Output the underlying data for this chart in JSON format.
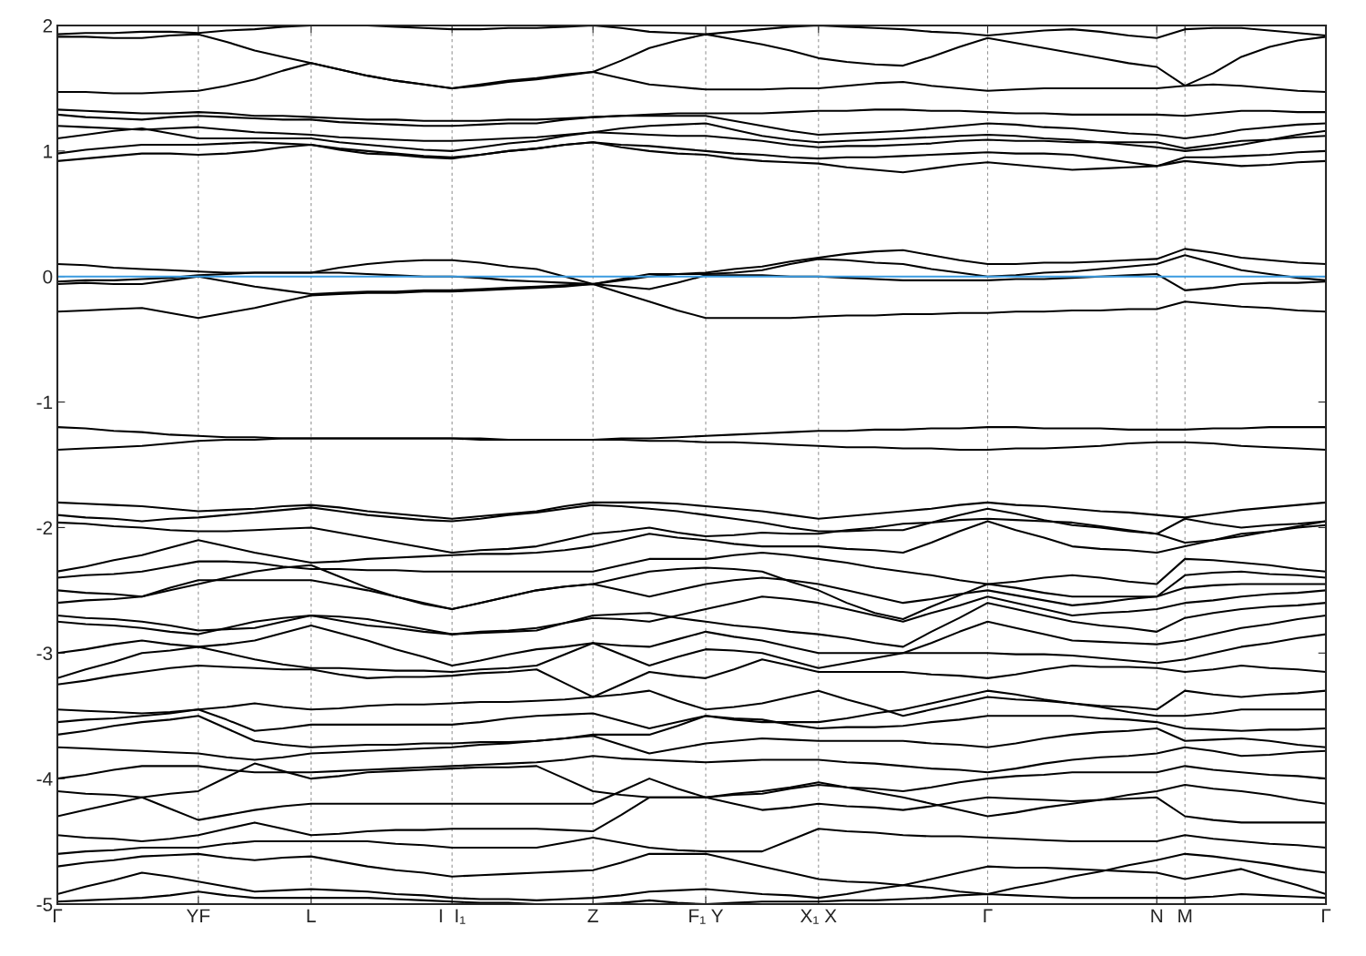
{
  "chart_data": {
    "type": "line",
    "categories": [
      "Γ",
      null,
      null,
      null,
      null,
      "YF",
      null,
      null,
      null,
      "L",
      null,
      null,
      null,
      null,
      "I  I₁",
      null,
      null,
      null,
      null,
      "Z",
      null,
      null,
      null,
      "F₁ Y",
      null,
      null,
      null,
      "X₁ X",
      null,
      null,
      null,
      null,
      null,
      "Γ",
      null,
      null,
      null,
      null,
      null,
      "N",
      "M",
      null,
      null,
      null,
      null,
      "Γ"
    ],
    "ylim": [
      -5,
      2
    ],
    "yticks": [
      -5,
      -4,
      -3,
      -2,
      -1,
      0,
      1,
      2
    ],
    "grid": "x",
    "line_style": "solid",
    "ref_lines": [
      {
        "axis": "y",
        "value": 0,
        "color": "#3a9be0"
      }
    ],
    "series": [
      {
        "color": "#000000",
        "values": [
          1.93,
          1.94,
          1.94,
          1.95,
          1.95,
          1.94,
          1.96,
          1.97,
          1.99,
          2.0,
          2.0,
          2.0,
          1.99,
          1.98,
          1.97,
          1.97,
          1.98,
          1.98,
          1.99,
          2.0,
          1.98,
          1.95,
          1.94,
          1.93,
          1.95,
          1.97,
          1.99,
          2.0,
          1.99,
          1.98,
          1.97,
          1.95,
          1.94,
          1.92,
          1.94,
          1.96,
          1.97,
          1.95,
          1.92,
          1.9,
          1.97,
          1.98,
          1.98,
          1.96,
          1.94,
          1.92
        ]
      },
      {
        "color": "#000000",
        "values": [
          1.91,
          1.91,
          1.9,
          1.9,
          1.92,
          1.93,
          1.87,
          1.8,
          1.75,
          1.7,
          1.65,
          1.6,
          1.56,
          1.53,
          1.5,
          1.52,
          1.55,
          1.57,
          1.6,
          1.63,
          1.72,
          1.82,
          1.88,
          1.93,
          1.89,
          1.85,
          1.8,
          1.74,
          1.71,
          1.69,
          1.68,
          1.75,
          1.83,
          1.9,
          1.86,
          1.82,
          1.78,
          1.74,
          1.7,
          1.67,
          1.52,
          1.62,
          1.75,
          1.83,
          1.88,
          1.91
        ]
      },
      {
        "color": "#000000",
        "values": [
          1.47,
          1.47,
          1.46,
          1.46,
          1.47,
          1.48,
          1.52,
          1.57,
          1.64,
          1.7,
          1.65,
          1.6,
          1.56,
          1.53,
          1.5,
          1.53,
          1.56,
          1.58,
          1.61,
          1.63,
          1.58,
          1.53,
          1.51,
          1.49,
          1.49,
          1.49,
          1.5,
          1.5,
          1.52,
          1.54,
          1.55,
          1.52,
          1.5,
          1.48,
          1.49,
          1.5,
          1.5,
          1.5,
          1.5,
          1.5,
          1.52,
          1.53,
          1.52,
          1.5,
          1.48,
          1.47
        ]
      },
      {
        "color": "#000000",
        "values": [
          1.33,
          1.32,
          1.31,
          1.3,
          1.3,
          1.31,
          1.3,
          1.28,
          1.28,
          1.27,
          1.26,
          1.25,
          1.25,
          1.24,
          1.24,
          1.24,
          1.25,
          1.25,
          1.26,
          1.27,
          1.28,
          1.29,
          1.3,
          1.3,
          1.3,
          1.3,
          1.31,
          1.32,
          1.32,
          1.33,
          1.33,
          1.32,
          1.32,
          1.31,
          1.3,
          1.3,
          1.29,
          1.29,
          1.29,
          1.29,
          1.28,
          1.3,
          1.32,
          1.32,
          1.31,
          1.31
        ]
      },
      {
        "color": "#000000",
        "values": [
          1.29,
          1.27,
          1.26,
          1.25,
          1.27,
          1.28,
          1.27,
          1.26,
          1.25,
          1.25,
          1.23,
          1.22,
          1.21,
          1.2,
          1.2,
          1.21,
          1.22,
          1.22,
          1.25,
          1.27,
          1.28,
          1.28,
          1.28,
          1.28,
          1.24,
          1.2,
          1.16,
          1.13,
          1.14,
          1.15,
          1.16,
          1.18,
          1.2,
          1.22,
          1.21,
          1.19,
          1.18,
          1.16,
          1.14,
          1.13,
          1.1,
          1.13,
          1.17,
          1.19,
          1.21,
          1.22
        ]
      },
      {
        "color": "#000000",
        "values": [
          1.2,
          1.19,
          1.18,
          1.17,
          1.18,
          1.19,
          1.17,
          1.15,
          1.14,
          1.13,
          1.11,
          1.1,
          1.09,
          1.08,
          1.08,
          1.09,
          1.1,
          1.11,
          1.13,
          1.15,
          1.18,
          1.2,
          1.21,
          1.22,
          1.17,
          1.12,
          1.09,
          1.07,
          1.08,
          1.09,
          1.1,
          1.11,
          1.12,
          1.13,
          1.12,
          1.1,
          1.09,
          1.07,
          1.05,
          1.03,
          1.0,
          1.02,
          1.05,
          1.09,
          1.13,
          1.16
        ]
      },
      {
        "color": "#000000",
        "values": [
          1.1,
          1.13,
          1.16,
          1.18,
          1.14,
          1.1,
          1.1,
          1.1,
          1.1,
          1.1,
          1.07,
          1.05,
          1.03,
          1.01,
          1.0,
          1.03,
          1.06,
          1.08,
          1.12,
          1.15,
          1.14,
          1.13,
          1.12,
          1.12,
          1.1,
          1.08,
          1.05,
          1.03,
          1.04,
          1.04,
          1.05,
          1.06,
          1.08,
          1.09,
          1.08,
          1.08,
          1.07,
          1.07,
          1.07,
          1.07,
          1.02,
          1.05,
          1.08,
          1.09,
          1.11,
          1.12
        ]
      },
      {
        "color": "#000000",
        "values": [
          0.98,
          1.01,
          1.03,
          1.05,
          1.05,
          1.05,
          1.06,
          1.07,
          1.06,
          1.05,
          1.02,
          1.0,
          0.98,
          0.96,
          0.95,
          0.97,
          1.0,
          1.02,
          1.05,
          1.07,
          1.05,
          1.04,
          1.02,
          1.0,
          0.98,
          0.97,
          0.95,
          0.94,
          0.95,
          0.95,
          0.96,
          0.97,
          0.98,
          0.99,
          0.98,
          0.98,
          0.97,
          0.94,
          0.91,
          0.88,
          0.95,
          0.95,
          0.96,
          0.97,
          0.99,
          1.0
        ]
      },
      {
        "color": "#000000",
        "values": [
          0.92,
          0.94,
          0.96,
          0.98,
          0.98,
          0.97,
          0.98,
          1.0,
          1.03,
          1.05,
          1.01,
          0.98,
          0.97,
          0.95,
          0.94,
          0.97,
          1.0,
          1.02,
          1.05,
          1.07,
          1.03,
          1.0,
          0.98,
          0.97,
          0.94,
          0.92,
          0.91,
          0.9,
          0.87,
          0.85,
          0.83,
          0.86,
          0.89,
          0.91,
          0.89,
          0.87,
          0.85,
          0.86,
          0.87,
          0.88,
          0.92,
          0.9,
          0.88,
          0.89,
          0.91,
          0.92
        ]
      },
      {
        "color": "#000000",
        "values": [
          0.1,
          0.09,
          0.07,
          0.06,
          0.05,
          0.04,
          0.03,
          0.03,
          0.03,
          0.03,
          0.07,
          0.1,
          0.12,
          0.13,
          0.13,
          0.11,
          0.08,
          0.06,
          0.0,
          -0.06,
          -0.03,
          0.0,
          0.02,
          0.03,
          0.06,
          0.08,
          0.12,
          0.15,
          0.18,
          0.2,
          0.21,
          0.17,
          0.13,
          0.1,
          0.1,
          0.11,
          0.11,
          0.12,
          0.13,
          0.14,
          0.22,
          0.19,
          0.15,
          0.13,
          0.11,
          0.1
        ]
      },
      {
        "color": "#000000",
        "values": [
          -0.04,
          -0.03,
          -0.03,
          -0.02,
          -0.01,
          0.01,
          0.02,
          0.03,
          0.03,
          0.03,
          0.03,
          0.02,
          0.01,
          0.0,
          0.0,
          -0.01,
          -0.03,
          -0.04,
          -0.05,
          -0.06,
          -0.02,
          0.02,
          0.02,
          0.02,
          0.03,
          0.05,
          0.1,
          0.14,
          0.13,
          0.11,
          0.1,
          0.06,
          0.03,
          0.0,
          0.01,
          0.03,
          0.04,
          0.06,
          0.08,
          0.1,
          0.17,
          0.11,
          0.05,
          0.02,
          -0.01,
          -0.03
        ]
      },
      {
        "color": "#000000",
        "values": [
          -0.06,
          -0.05,
          -0.06,
          -0.06,
          -0.03,
          0.0,
          -0.04,
          -0.08,
          -0.11,
          -0.14,
          -0.13,
          -0.12,
          -0.12,
          -0.11,
          -0.11,
          -0.1,
          -0.09,
          -0.08,
          -0.07,
          -0.06,
          -0.08,
          -0.1,
          -0.05,
          0.01,
          0.01,
          0.01,
          0.0,
          0.0,
          -0.01,
          -0.02,
          -0.03,
          -0.03,
          -0.03,
          -0.03,
          -0.02,
          -0.02,
          -0.01,
          0.0,
          0.01,
          0.02,
          -0.11,
          -0.09,
          -0.06,
          -0.05,
          -0.05,
          -0.04
        ]
      },
      {
        "color": "#000000",
        "values": [
          -0.28,
          -0.27,
          -0.26,
          -0.25,
          -0.29,
          -0.33,
          -0.29,
          -0.25,
          -0.2,
          -0.15,
          -0.14,
          -0.13,
          -0.13,
          -0.12,
          -0.12,
          -0.11,
          -0.1,
          -0.09,
          -0.08,
          -0.06,
          -0.13,
          -0.2,
          -0.27,
          -0.33,
          -0.33,
          -0.33,
          -0.33,
          -0.32,
          -0.31,
          -0.31,
          -0.3,
          -0.3,
          -0.29,
          -0.29,
          -0.28,
          -0.28,
          -0.27,
          -0.27,
          -0.26,
          -0.26,
          -0.2,
          -0.22,
          -0.24,
          -0.25,
          -0.27,
          -0.28
        ]
      },
      {
        "color": "#000000",
        "values": [
          -1.2,
          -1.21,
          -1.23,
          -1.24,
          -1.26,
          -1.27,
          -1.28,
          -1.28,
          -1.29,
          -1.29,
          -1.29,
          -1.29,
          -1.29,
          -1.29,
          -1.29,
          -1.3,
          -1.3,
          -1.3,
          -1.3,
          -1.3,
          -1.29,
          -1.29,
          -1.28,
          -1.27,
          -1.26,
          -1.25,
          -1.24,
          -1.23,
          -1.23,
          -1.22,
          -1.22,
          -1.21,
          -1.21,
          -1.2,
          -1.2,
          -1.21,
          -1.21,
          -1.21,
          -1.22,
          -1.22,
          -1.22,
          -1.21,
          -1.21,
          -1.2,
          -1.2,
          -1.2
        ]
      },
      {
        "color": "#000000",
        "values": [
          -1.38,
          -1.37,
          -1.36,
          -1.35,
          -1.33,
          -1.31,
          -1.3,
          -1.3,
          -1.29,
          -1.29,
          -1.29,
          -1.29,
          -1.29,
          -1.29,
          -1.29,
          -1.29,
          -1.3,
          -1.3,
          -1.3,
          -1.3,
          -1.3,
          -1.31,
          -1.31,
          -1.32,
          -1.32,
          -1.33,
          -1.34,
          -1.35,
          -1.36,
          -1.36,
          -1.37,
          -1.37,
          -1.38,
          -1.38,
          -1.37,
          -1.37,
          -1.36,
          -1.35,
          -1.33,
          -1.32,
          -1.32,
          -1.33,
          -1.35,
          -1.36,
          -1.37,
          -1.38
        ]
      },
      {
        "color": "#000000",
        "values": [
          -1.8,
          -1.81,
          -1.82,
          -1.83,
          -1.85,
          -1.87,
          -1.86,
          -1.85,
          -1.83,
          -1.82,
          -1.84,
          -1.87,
          -1.89,
          -1.91,
          -1.93,
          -1.91,
          -1.89,
          -1.87,
          -1.83,
          -1.8,
          -1.8,
          -1.8,
          -1.81,
          -1.83,
          -1.85,
          -1.87,
          -1.9,
          -1.93,
          -1.91,
          -1.89,
          -1.87,
          -1.85,
          -1.82,
          -1.8,
          -1.82,
          -1.83,
          -1.85,
          -1.87,
          -1.88,
          -1.9,
          -1.92,
          -1.89,
          -1.86,
          -1.84,
          -1.82,
          -1.8
        ]
      },
      {
        "color": "#000000",
        "values": [
          -1.9,
          -1.92,
          -1.93,
          -1.95,
          -1.93,
          -1.92,
          -1.9,
          -1.88,
          -1.86,
          -1.84,
          -1.87,
          -1.9,
          -1.92,
          -1.94,
          -1.95,
          -1.93,
          -1.9,
          -1.88,
          -1.85,
          -1.82,
          -1.83,
          -1.85,
          -1.87,
          -1.9,
          -1.93,
          -1.96,
          -2.0,
          -2.03,
          -2.03,
          -2.02,
          -2.02,
          -1.96,
          -1.9,
          -1.85,
          -1.89,
          -1.94,
          -1.98,
          -2.0,
          -2.03,
          -2.05,
          -1.93,
          -1.97,
          -2.0,
          -1.98,
          -1.97,
          -1.95
        ]
      },
      {
        "color": "#000000",
        "values": [
          -1.96,
          -1.97,
          -1.99,
          -2.0,
          -2.02,
          -2.03,
          -2.03,
          -2.02,
          -2.01,
          -2.0,
          -2.04,
          -2.08,
          -2.12,
          -2.16,
          -2.2,
          -2.18,
          -2.17,
          -2.15,
          -2.1,
          -2.05,
          -2.03,
          -2.0,
          -2.04,
          -2.07,
          -2.06,
          -2.04,
          -2.05,
          -2.05,
          -2.02,
          -2.0,
          -1.97,
          -1.96,
          -1.94,
          -1.93,
          -1.94,
          -1.95,
          -1.96,
          -1.99,
          -2.02,
          -2.05,
          -2.12,
          -2.1,
          -2.07,
          -2.03,
          -1.99,
          -1.95
        ]
      },
      {
        "color": "#000000",
        "values": [
          -2.35,
          -2.31,
          -2.26,
          -2.22,
          -2.16,
          -2.1,
          -2.15,
          -2.2,
          -2.24,
          -2.28,
          -2.27,
          -2.25,
          -2.24,
          -2.23,
          -2.22,
          -2.21,
          -2.21,
          -2.2,
          -2.18,
          -2.15,
          -2.1,
          -2.05,
          -2.08,
          -2.1,
          -2.13,
          -2.15,
          -2.15,
          -2.15,
          -2.17,
          -2.18,
          -2.2,
          -2.12,
          -2.03,
          -1.95,
          -2.02,
          -2.08,
          -2.15,
          -2.17,
          -2.18,
          -2.2,
          -2.15,
          -2.1,
          -2.05,
          -2.03,
          -2.0,
          -1.98
        ]
      },
      {
        "color": "#000000",
        "values": [
          -2.4,
          -2.38,
          -2.37,
          -2.35,
          -2.31,
          -2.27,
          -2.27,
          -2.28,
          -2.31,
          -2.33,
          -2.33,
          -2.34,
          -2.34,
          -2.35,
          -2.35,
          -2.35,
          -2.35,
          -2.35,
          -2.35,
          -2.35,
          -2.3,
          -2.25,
          -2.25,
          -2.25,
          -2.22,
          -2.2,
          -2.22,
          -2.25,
          -2.28,
          -2.32,
          -2.35,
          -2.38,
          -2.42,
          -2.45,
          -2.43,
          -2.4,
          -2.38,
          -2.4,
          -2.43,
          -2.45,
          -2.25,
          -2.26,
          -2.28,
          -2.3,
          -2.33,
          -2.35
        ]
      },
      {
        "color": "#000000",
        "values": [
          -2.5,
          -2.52,
          -2.53,
          -2.55,
          -2.5,
          -2.45,
          -2.4,
          -2.35,
          -2.32,
          -2.3,
          -2.39,
          -2.48,
          -2.55,
          -2.61,
          -2.65,
          -2.6,
          -2.55,
          -2.5,
          -2.47,
          -2.45,
          -2.4,
          -2.35,
          -2.33,
          -2.32,
          -2.33,
          -2.35,
          -2.43,
          -2.5,
          -2.6,
          -2.68,
          -2.73,
          -2.63,
          -2.54,
          -2.45,
          -2.48,
          -2.52,
          -2.55,
          -2.55,
          -2.55,
          -2.55,
          -2.38,
          -2.36,
          -2.35,
          -2.37,
          -2.38,
          -2.4
        ]
      },
      {
        "color": "#000000",
        "values": [
          -2.6,
          -2.58,
          -2.57,
          -2.55,
          -2.48,
          -2.42,
          -2.42,
          -2.42,
          -2.42,
          -2.42,
          -2.46,
          -2.5,
          -2.55,
          -2.6,
          -2.65,
          -2.6,
          -2.55,
          -2.5,
          -2.47,
          -2.45,
          -2.5,
          -2.55,
          -2.5,
          -2.45,
          -2.42,
          -2.4,
          -2.42,
          -2.45,
          -2.5,
          -2.55,
          -2.6,
          -2.57,
          -2.53,
          -2.5,
          -2.54,
          -2.58,
          -2.62,
          -2.6,
          -2.57,
          -2.55,
          -2.48,
          -2.46,
          -2.45,
          -2.45,
          -2.45,
          -2.45
        ]
      },
      {
        "color": "#000000",
        "values": [
          -2.7,
          -2.72,
          -2.73,
          -2.75,
          -2.78,
          -2.82,
          -2.81,
          -2.8,
          -2.75,
          -2.7,
          -2.74,
          -2.78,
          -2.8,
          -2.83,
          -2.85,
          -2.83,
          -2.82,
          -2.8,
          -2.76,
          -2.72,
          -2.73,
          -2.75,
          -2.7,
          -2.65,
          -2.6,
          -2.55,
          -2.57,
          -2.6,
          -2.65,
          -2.7,
          -2.75,
          -2.68,
          -2.62,
          -2.55,
          -2.6,
          -2.65,
          -2.7,
          -2.68,
          -2.67,
          -2.65,
          -2.6,
          -2.58,
          -2.55,
          -2.53,
          -2.52,
          -2.5
        ]
      },
      {
        "color": "#000000",
        "values": [
          -2.75,
          -2.77,
          -2.78,
          -2.8,
          -2.83,
          -2.85,
          -2.8,
          -2.75,
          -2.72,
          -2.7,
          -2.71,
          -2.73,
          -2.77,
          -2.81,
          -2.85,
          -2.84,
          -2.83,
          -2.82,
          -2.76,
          -2.7,
          -2.69,
          -2.68,
          -2.72,
          -2.75,
          -2.78,
          -2.8,
          -2.83,
          -2.85,
          -2.88,
          -2.92,
          -2.95,
          -2.83,
          -2.72,
          -2.6,
          -2.65,
          -2.7,
          -2.75,
          -2.78,
          -2.8,
          -2.83,
          -2.72,
          -2.68,
          -2.65,
          -2.63,
          -2.62,
          -2.6
        ]
      },
      {
        "color": "#000000",
        "values": [
          -3.0,
          -2.97,
          -2.93,
          -2.9,
          -2.93,
          -2.95,
          -2.93,
          -2.9,
          -2.84,
          -2.78,
          -2.84,
          -2.9,
          -2.97,
          -3.03,
          -3.1,
          -3.06,
          -3.01,
          -2.97,
          -2.95,
          -2.92,
          -2.94,
          -2.95,
          -2.89,
          -2.83,
          -2.87,
          -2.9,
          -2.95,
          -3.0,
          -3.0,
          -3.0,
          -3.0,
          -2.92,
          -2.83,
          -2.75,
          -2.8,
          -2.85,
          -2.9,
          -2.91,
          -2.92,
          -2.93,
          -2.9,
          -2.85,
          -2.8,
          -2.77,
          -2.73,
          -2.7
        ]
      },
      {
        "color": "#000000",
        "values": [
          -3.2,
          -3.13,
          -3.07,
          -3.0,
          -2.98,
          -2.95,
          -3.0,
          -3.05,
          -3.09,
          -3.12,
          -3.12,
          -3.13,
          -3.14,
          -3.14,
          -3.15,
          -3.13,
          -3.12,
          -3.1,
          -3.01,
          -2.92,
          -3.01,
          -3.1,
          -3.03,
          -2.97,
          -2.98,
          -3.0,
          -3.06,
          -3.12,
          -3.08,
          -3.04,
          -3.0,
          -3.0,
          -3.0,
          -3.0,
          -3.01,
          -3.01,
          -3.02,
          -3.04,
          -3.06,
          -3.08,
          -3.05,
          -3.0,
          -2.95,
          -2.92,
          -2.88,
          -2.85
        ]
      },
      {
        "color": "#000000",
        "values": [
          -3.25,
          -3.22,
          -3.18,
          -3.15,
          -3.12,
          -3.1,
          -3.11,
          -3.12,
          -3.13,
          -3.13,
          -3.17,
          -3.2,
          -3.19,
          -3.19,
          -3.18,
          -3.16,
          -3.15,
          -3.13,
          -3.24,
          -3.35,
          -3.25,
          -3.15,
          -3.18,
          -3.2,
          -3.13,
          -3.05,
          -3.1,
          -3.15,
          -3.15,
          -3.15,
          -3.15,
          -3.17,
          -3.18,
          -3.2,
          -3.17,
          -3.13,
          -3.1,
          -3.11,
          -3.11,
          -3.12,
          -3.15,
          -3.13,
          -3.1,
          -3.12,
          -3.13,
          -3.15
        ]
      },
      {
        "color": "#000000",
        "values": [
          -3.45,
          -3.46,
          -3.47,
          -3.48,
          -3.47,
          -3.45,
          -3.43,
          -3.4,
          -3.43,
          -3.45,
          -3.44,
          -3.42,
          -3.41,
          -3.41,
          -3.4,
          -3.39,
          -3.39,
          -3.38,
          -3.37,
          -3.35,
          -3.33,
          -3.3,
          -3.38,
          -3.45,
          -3.43,
          -3.4,
          -3.35,
          -3.3,
          -3.37,
          -3.43,
          -3.5,
          -3.45,
          -3.4,
          -3.35,
          -3.37,
          -3.38,
          -3.4,
          -3.42,
          -3.43,
          -3.45,
          -3.3,
          -3.33,
          -3.35,
          -3.33,
          -3.32,
          -3.3
        ]
      },
      {
        "color": "#000000",
        "values": [
          -3.55,
          -3.53,
          -3.52,
          -3.5,
          -3.48,
          -3.45,
          -3.53,
          -3.62,
          -3.6,
          -3.57,
          -3.57,
          -3.57,
          -3.57,
          -3.57,
          -3.57,
          -3.55,
          -3.52,
          -3.5,
          -3.49,
          -3.48,
          -3.54,
          -3.6,
          -3.55,
          -3.5,
          -3.53,
          -3.55,
          -3.55,
          -3.55,
          -3.52,
          -3.48,
          -3.45,
          -3.4,
          -3.35,
          -3.3,
          -3.33,
          -3.37,
          -3.4,
          -3.43,
          -3.47,
          -3.5,
          -3.5,
          -3.48,
          -3.45,
          -3.45,
          -3.45,
          -3.45
        ]
      },
      {
        "color": "#000000",
        "values": [
          -3.65,
          -3.62,
          -3.58,
          -3.55,
          -3.53,
          -3.5,
          -3.6,
          -3.7,
          -3.73,
          -3.75,
          -3.74,
          -3.73,
          -3.73,
          -3.72,
          -3.72,
          -3.71,
          -3.71,
          -3.7,
          -3.68,
          -3.65,
          -3.65,
          -3.65,
          -3.58,
          -3.5,
          -3.52,
          -3.53,
          -3.57,
          -3.6,
          -3.59,
          -3.59,
          -3.58,
          -3.55,
          -3.53,
          -3.5,
          -3.5,
          -3.5,
          -3.5,
          -3.52,
          -3.53,
          -3.55,
          -3.6,
          -3.61,
          -3.62,
          -3.61,
          -3.61,
          -3.6
        ]
      },
      {
        "color": "#000000",
        "values": [
          -3.75,
          -3.76,
          -3.77,
          -3.78,
          -3.79,
          -3.8,
          -3.83,
          -3.85,
          -3.83,
          -3.8,
          -3.79,
          -3.78,
          -3.77,
          -3.76,
          -3.75,
          -3.73,
          -3.72,
          -3.7,
          -3.68,
          -3.66,
          -3.73,
          -3.8,
          -3.76,
          -3.72,
          -3.7,
          -3.68,
          -3.69,
          -3.7,
          -3.7,
          -3.7,
          -3.7,
          -3.72,
          -3.73,
          -3.75,
          -3.72,
          -3.68,
          -3.65,
          -3.63,
          -3.62,
          -3.6,
          -3.7,
          -3.69,
          -3.68,
          -3.7,
          -3.73,
          -3.75
        ]
      },
      {
        "color": "#000000",
        "values": [
          -4.0,
          -3.97,
          -3.93,
          -3.9,
          -3.9,
          -3.9,
          -3.93,
          -3.95,
          -3.95,
          -3.95,
          -3.94,
          -3.93,
          -3.92,
          -3.91,
          -3.9,
          -3.89,
          -3.88,
          -3.87,
          -3.85,
          -3.82,
          -3.84,
          -3.85,
          -3.86,
          -3.87,
          -3.86,
          -3.85,
          -3.85,
          -3.85,
          -3.87,
          -3.88,
          -3.9,
          -3.92,
          -3.93,
          -3.95,
          -3.92,
          -3.88,
          -3.85,
          -3.83,
          -3.82,
          -3.8,
          -3.75,
          -3.78,
          -3.82,
          -3.81,
          -3.79,
          -3.78
        ]
      },
      {
        "color": "#000000",
        "values": [
          -4.1,
          -4.12,
          -4.13,
          -4.15,
          -4.12,
          -4.1,
          -3.99,
          -3.88,
          -3.94,
          -4.0,
          -3.98,
          -3.95,
          -3.94,
          -3.93,
          -3.92,
          -3.91,
          -3.91,
          -3.9,
          -4.0,
          -4.1,
          -4.13,
          -4.15,
          -4.15,
          -4.15,
          -4.13,
          -4.12,
          -4.08,
          -4.05,
          -4.07,
          -4.08,
          -4.1,
          -4.07,
          -4.03,
          -4.0,
          -3.98,
          -3.97,
          -3.95,
          -3.95,
          -3.95,
          -3.95,
          -3.9,
          -3.93,
          -3.95,
          -3.97,
          -3.98,
          -4.0
        ]
      },
      {
        "color": "#000000",
        "values": [
          -4.3,
          -4.25,
          -4.2,
          -4.15,
          -4.24,
          -4.33,
          -4.29,
          -4.25,
          -4.22,
          -4.2,
          -4.2,
          -4.2,
          -4.2,
          -4.2,
          -4.2,
          -4.2,
          -4.2,
          -4.2,
          -4.2,
          -4.2,
          -4.1,
          -4.0,
          -4.08,
          -4.15,
          -4.12,
          -4.1,
          -4.07,
          -4.03,
          -4.07,
          -4.11,
          -4.15,
          -4.2,
          -4.25,
          -4.3,
          -4.27,
          -4.23,
          -4.2,
          -4.17,
          -4.13,
          -4.1,
          -4.05,
          -4.08,
          -4.1,
          -4.13,
          -4.17,
          -4.2
        ]
      },
      {
        "color": "#000000",
        "values": [
          -4.45,
          -4.47,
          -4.48,
          -4.5,
          -4.48,
          -4.45,
          -4.4,
          -4.35,
          -4.4,
          -4.45,
          -4.44,
          -4.42,
          -4.41,
          -4.41,
          -4.4,
          -4.4,
          -4.4,
          -4.4,
          -4.41,
          -4.42,
          -4.29,
          -4.15,
          -4.15,
          -4.15,
          -4.2,
          -4.25,
          -4.23,
          -4.2,
          -4.22,
          -4.23,
          -4.25,
          -4.22,
          -4.18,
          -4.15,
          -4.16,
          -4.17,
          -4.18,
          -4.17,
          -4.16,
          -4.15,
          -4.3,
          -4.33,
          -4.35,
          -4.35,
          -4.35,
          -4.35
        ]
      },
      {
        "color": "#000000",
        "values": [
          -4.6,
          -4.58,
          -4.57,
          -4.55,
          -4.55,
          -4.55,
          -4.52,
          -4.5,
          -4.5,
          -4.5,
          -4.5,
          -4.5,
          -4.52,
          -4.53,
          -4.55,
          -4.55,
          -4.55,
          -4.55,
          -4.51,
          -4.47,
          -4.51,
          -4.55,
          -4.57,
          -4.58,
          -4.58,
          -4.58,
          -4.49,
          -4.4,
          -4.42,
          -4.43,
          -4.45,
          -4.46,
          -4.46,
          -4.47,
          -4.48,
          -4.49,
          -4.5,
          -4.5,
          -4.5,
          -4.5,
          -4.45,
          -4.48,
          -4.5,
          -4.52,
          -4.53,
          -4.55
        ]
      },
      {
        "color": "#000000",
        "values": [
          -4.7,
          -4.67,
          -4.65,
          -4.62,
          -4.61,
          -4.6,
          -4.63,
          -4.65,
          -4.63,
          -4.62,
          -4.66,
          -4.7,
          -4.73,
          -4.75,
          -4.78,
          -4.77,
          -4.76,
          -4.75,
          -4.74,
          -4.73,
          -4.67,
          -4.6,
          -4.6,
          -4.6,
          -4.65,
          -4.7,
          -4.75,
          -4.8,
          -4.82,
          -4.83,
          -4.85,
          -4.87,
          -4.9,
          -4.92,
          -4.87,
          -4.83,
          -4.78,
          -4.74,
          -4.69,
          -4.65,
          -4.6,
          -4.62,
          -4.65,
          -4.68,
          -4.72,
          -4.75
        ]
      },
      {
        "color": "#000000",
        "values": [
          -4.92,
          -4.86,
          -4.81,
          -4.75,
          -4.78,
          -4.82,
          -4.86,
          -4.9,
          -4.89,
          -4.88,
          -4.89,
          -4.9,
          -4.92,
          -4.93,
          -4.95,
          -4.96,
          -4.96,
          -4.97,
          -4.96,
          -4.95,
          -4.93,
          -4.9,
          -4.89,
          -4.88,
          -4.9,
          -4.92,
          -4.93,
          -4.95,
          -4.92,
          -4.88,
          -4.85,
          -4.8,
          -4.75,
          -4.7,
          -4.71,
          -4.71,
          -4.72,
          -4.73,
          -4.74,
          -4.75,
          -4.8,
          -4.76,
          -4.72,
          -4.79,
          -4.85,
          -4.92
        ]
      },
      {
        "color": "#000000",
        "values": [
          -4.98,
          -4.97,
          -4.96,
          -4.95,
          -4.93,
          -4.9,
          -4.93,
          -4.95,
          -4.95,
          -4.95,
          -4.95,
          -4.95,
          -4.96,
          -4.97,
          -4.98,
          -4.99,
          -4.99,
          -5.0,
          -5.0,
          -5.0,
          -4.99,
          -4.97,
          -4.99,
          -5.0,
          -4.99,
          -4.98,
          -4.98,
          -4.98,
          -4.97,
          -4.97,
          -4.96,
          -4.95,
          -4.93,
          -4.92,
          -4.93,
          -4.94,
          -4.95,
          -4.95,
          -4.95,
          -4.95,
          -4.95,
          -4.94,
          -4.92,
          -4.93,
          -4.94,
          -4.95
        ]
      }
    ]
  }
}
